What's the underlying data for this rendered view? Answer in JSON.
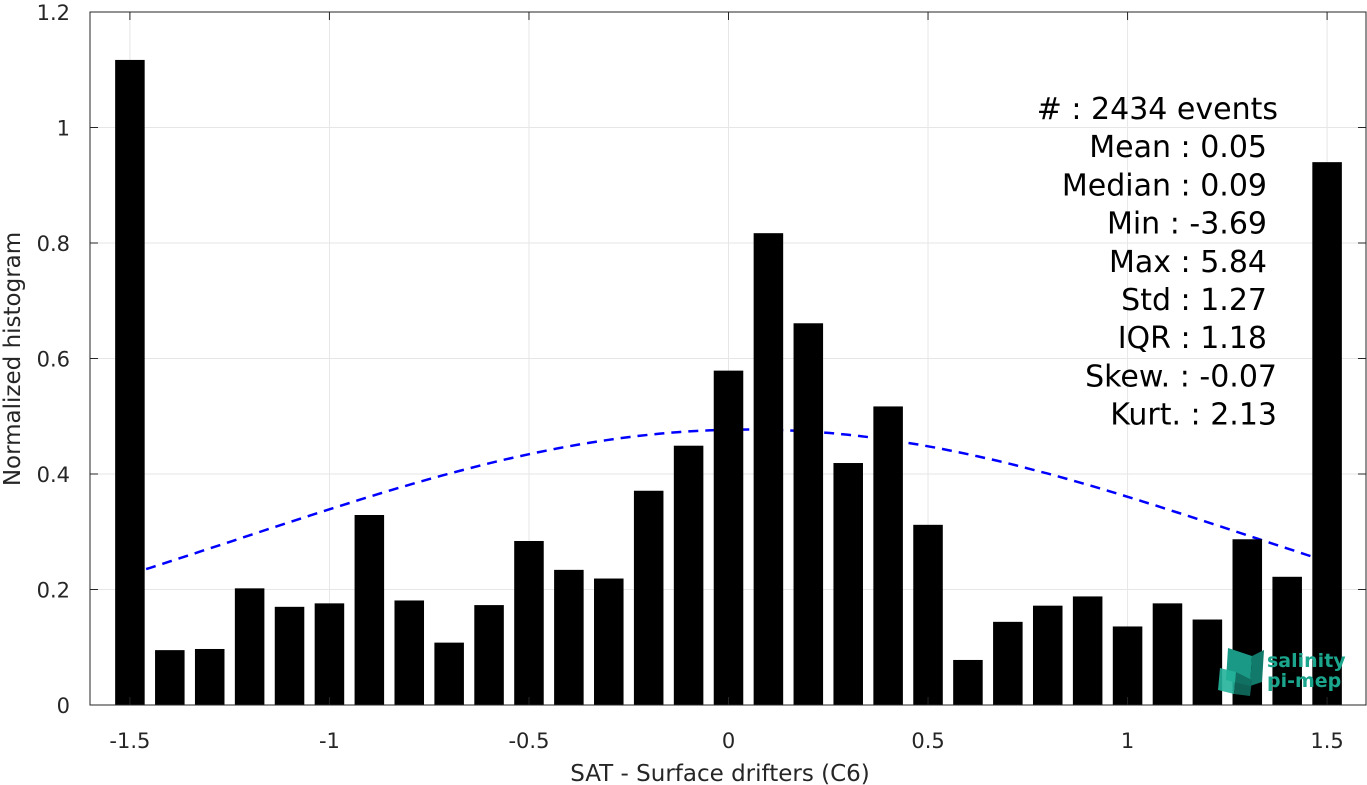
{
  "chart_data": {
    "type": "bar",
    "xlabel": "SAT - Surface drifters (C6)",
    "ylabel": "Normalized histogram",
    "xlim": [
      -1.6,
      1.6
    ],
    "ylim": [
      0,
      1.2
    ],
    "xticks": [
      "-1.5",
      "-1",
      "-0.5",
      "0",
      "0.5",
      "1",
      "1.5"
    ],
    "xtick_values": [
      -1.5,
      -1,
      -0.5,
      0,
      0.5,
      1,
      1.5
    ],
    "yticks": [
      "0",
      "0.2",
      "0.4",
      "0.6",
      "0.8",
      "1",
      "1.2"
    ],
    "ytick_values": [
      0,
      0.2,
      0.4,
      0.6,
      0.8,
      1,
      1.2
    ],
    "grid": true,
    "bar_color": "#000000",
    "x": [
      -1.5,
      -1.4,
      -1.3,
      -1.2,
      -1.1,
      -1.0,
      -0.9,
      -0.8,
      -0.7,
      -0.6,
      -0.5,
      -0.4,
      -0.3,
      -0.2,
      -0.1,
      0.0,
      0.1,
      0.2,
      0.3,
      0.4,
      0.5,
      0.6,
      0.7,
      0.8,
      0.9,
      1.0,
      1.1,
      1.2,
      1.3,
      1.4,
      1.5
    ],
    "values": [
      1.117,
      0.095,
      0.097,
      0.202,
      0.17,
      0.176,
      0.329,
      0.181,
      0.108,
      0.173,
      0.284,
      0.234,
      0.219,
      0.371,
      0.449,
      0.579,
      0.817,
      0.661,
      0.419,
      0.517,
      0.312,
      0.078,
      0.144,
      0.172,
      0.188,
      0.136,
      0.176,
      0.148,
      0.287,
      0.222,
      0.94
    ],
    "fit": {
      "type": "gaussian",
      "mean": 0.05,
      "std": 1.27,
      "peak": 0.477,
      "x_range": [
        -1.5,
        1.5
      ],
      "color": "#0000ff",
      "style": "dashed"
    },
    "stats": [
      "#  : 2434 events",
      "Mean : 0.05",
      "Median : 0.09",
      "Min : -3.69",
      "Max : 5.84",
      "Std : 1.27",
      "IQR : 1.18",
      "Skew. : -0.07",
      "Kurt. : 2.13"
    ]
  },
  "logo": {
    "line1": "salinity",
    "line2": "pi-mep",
    "color": "#1aa58c"
  }
}
